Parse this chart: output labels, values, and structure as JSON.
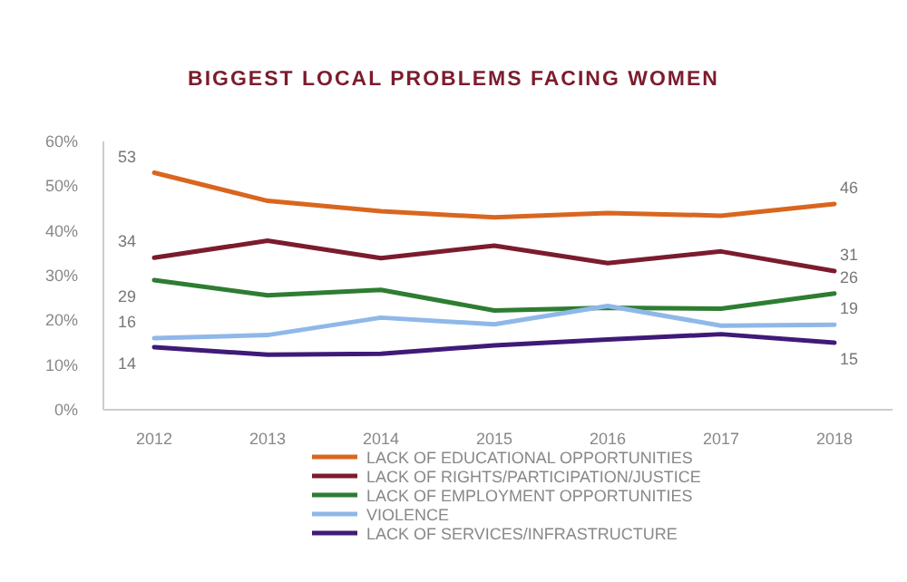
{
  "chart_data": {
    "type": "line",
    "title": "BIGGEST LOCAL PROBLEMS FACING WOMEN",
    "categories": [
      "2012",
      "2013",
      "2014",
      "2015",
      "2016",
      "2017",
      "2018"
    ],
    "ylim": [
      0,
      60
    ],
    "yticks": [
      {
        "value": 0,
        "label": "0%"
      },
      {
        "value": 10,
        "label": "10%"
      },
      {
        "value": 20,
        "label": "20%"
      },
      {
        "value": 30,
        "label": "30%"
      },
      {
        "value": 40,
        "label": "40%"
      },
      {
        "value": 50,
        "label": "50%"
      },
      {
        "value": 60,
        "label": "60%"
      }
    ],
    "grid": false,
    "legend": "bottom",
    "marker": "none",
    "line_style": "solid",
    "series": [
      {
        "name": "LACK OF EDUCATIONAL OPPORTUNITIES",
        "color": "#d9661f",
        "values": [
          53,
          46.7,
          44.4,
          43,
          44,
          43.4,
          46
        ],
        "value_labels": [
          "53",
          null,
          null,
          null,
          null,
          null,
          "46"
        ]
      },
      {
        "name": "LACK OF RIGHTS/PARTICIPATION/JUSTICE",
        "color": "#7b1c2c",
        "values": [
          34,
          37.8,
          33.9,
          36.7,
          32.8,
          35.4,
          31
        ],
        "value_labels": [
          "34",
          null,
          null,
          null,
          null,
          null,
          "31"
        ]
      },
      {
        "name": "LACK OF EMPLOYMENT OPPORTUNITIES",
        "color": "#2e7d32",
        "values": [
          29,
          25.6,
          26.8,
          22.2,
          22.8,
          22.6,
          26
        ],
        "value_labels": [
          "29",
          null,
          null,
          null,
          null,
          null,
          "26"
        ]
      },
      {
        "name": "VIOLENCE",
        "color": "#8fb8e8",
        "values": [
          16,
          16.7,
          20.6,
          19.1,
          23.2,
          18.8,
          19
        ],
        "value_labels": [
          "16",
          null,
          null,
          null,
          null,
          null,
          "19"
        ]
      },
      {
        "name": "LACK OF SERVICES/INFRASTRUCTURE",
        "color": "#3f1a78",
        "values": [
          14,
          12.3,
          12.5,
          14.4,
          15.7,
          16.9,
          15
        ],
        "value_labels": [
          "14",
          null,
          null,
          null,
          null,
          null,
          "15"
        ]
      }
    ]
  }
}
